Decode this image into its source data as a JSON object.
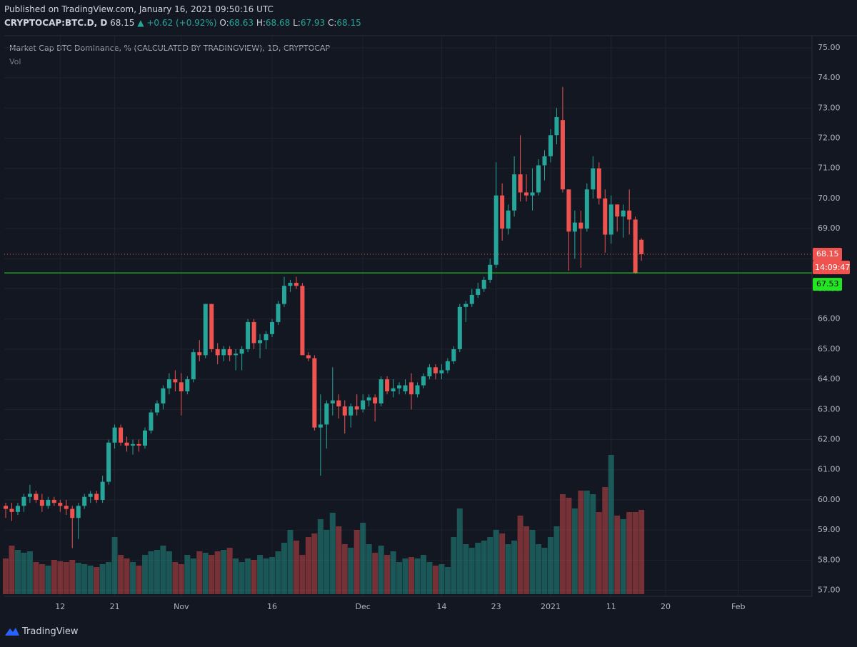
{
  "header": {
    "published": "Published on TradingView.com, January 16, 2021 09:50:16 UTC",
    "symbol": "CRYPTOCAP:BTC.D, D",
    "change": "+0.62 (+0.92%)",
    "ohlc_labels": [
      "O:",
      "H:",
      "L:",
      "C:"
    ]
  },
  "chart_data": {
    "type": "candlestick",
    "title": "Market Cap BTC Dominance, % (CALCULATED BY TRADINGVIEW), 1D, CRYPTOCAP",
    "volume_label": "Vol",
    "x": [
      "2020-10-03",
      "2020-10-04",
      "2020-10-05",
      "2020-10-06",
      "2020-10-07",
      "2020-10-08",
      "2020-10-09",
      "2020-10-10",
      "2020-10-11",
      "2020-10-12",
      "2020-10-13",
      "2020-10-14",
      "2020-10-15",
      "2020-10-16",
      "2020-10-17",
      "2020-10-18",
      "2020-10-19",
      "2020-10-20",
      "2020-10-21",
      "2020-10-22",
      "2020-10-23",
      "2020-10-24",
      "2020-10-25",
      "2020-10-26",
      "2020-10-27",
      "2020-10-28",
      "2020-10-29",
      "2020-10-30",
      "2020-10-31",
      "2020-11-01",
      "2020-11-02",
      "2020-11-03",
      "2020-11-04",
      "2020-11-05",
      "2020-11-06",
      "2020-11-07",
      "2020-11-08",
      "2020-11-09",
      "2020-11-10",
      "2020-11-11",
      "2020-11-12",
      "2020-11-13",
      "2020-11-14",
      "2020-11-15",
      "2020-11-16",
      "2020-11-17",
      "2020-11-18",
      "2020-11-19",
      "2020-11-20",
      "2020-11-21",
      "2020-11-22",
      "2020-11-23",
      "2020-11-24",
      "2020-11-25",
      "2020-11-26",
      "2020-11-27",
      "2020-11-28",
      "2020-11-29",
      "2020-11-30",
      "2020-12-01",
      "2020-12-02",
      "2020-12-03",
      "2020-12-04",
      "2020-12-05",
      "2020-12-06",
      "2020-12-07",
      "2020-12-08",
      "2020-12-09",
      "2020-12-10",
      "2020-12-11",
      "2020-12-12",
      "2020-12-13",
      "2020-12-14",
      "2020-12-15",
      "2020-12-16",
      "2020-12-17",
      "2020-12-18",
      "2020-12-19",
      "2020-12-20",
      "2020-12-21",
      "2020-12-22",
      "2020-12-23",
      "2020-12-24",
      "2020-12-25",
      "2020-12-26",
      "2020-12-27",
      "2020-12-28",
      "2020-12-29",
      "2020-12-30",
      "2020-12-31",
      "2021-01-01",
      "2021-01-02",
      "2021-01-03",
      "2021-01-04",
      "2021-01-05",
      "2021-01-06",
      "2021-01-07",
      "2021-01-08",
      "2021-01-09",
      "2021-01-10",
      "2021-01-11",
      "2021-01-12",
      "2021-01-13",
      "2021-01-14",
      "2021-01-15",
      "2021-01-16"
    ],
    "open": [
      59.8,
      59.7,
      59.6,
      59.8,
      60.1,
      60.2,
      60.0,
      59.8,
      60.0,
      59.9,
      59.8,
      59.7,
      59.4,
      59.8,
      60.1,
      60.2,
      60.0,
      60.6,
      61.9,
      62.4,
      61.9,
      61.8,
      61.85,
      61.8,
      62.3,
      62.9,
      63.2,
      63.7,
      64.0,
      63.9,
      63.6,
      64.0,
      64.9,
      64.8,
      66.5,
      65.0,
      64.8,
      65.0,
      64.8,
      64.85,
      65.0,
      65.9,
      65.2,
      65.3,
      65.5,
      65.9,
      66.5,
      67.1,
      67.2,
      67.1,
      64.8,
      64.7,
      62.4,
      62.5,
      63.2,
      63.3,
      63.1,
      62.8,
      63.1,
      63.0,
      63.3,
      63.4,
      63.2,
      64.0,
      63.6,
      63.7,
      63.6,
      63.9,
      63.5,
      63.8,
      64.1,
      64.4,
      64.2,
      64.3,
      64.6,
      65.0,
      66.4,
      66.5,
      66.8,
      67.0,
      67.3,
      67.8,
      70.1,
      69.0,
      69.6,
      70.8,
      70.2,
      70.1,
      70.2,
      71.1,
      71.4,
      72.1,
      72.6,
      70.3,
      68.9,
      69.2,
      69.0,
      70.3,
      71.0,
      70.0,
      68.8,
      69.8,
      69.4,
      69.6,
      69.3,
      68.63
    ],
    "high": [
      59.9,
      59.9,
      59.9,
      60.2,
      60.5,
      60.3,
      60.2,
      60.1,
      60.1,
      60.0,
      60.0,
      59.8,
      59.9,
      60.2,
      60.3,
      60.3,
      60.8,
      62.0,
      62.5,
      62.5,
      62.1,
      62.0,
      62.0,
      62.4,
      63.0,
      63.3,
      63.8,
      64.2,
      64.3,
      64.2,
      64.1,
      65.0,
      65.3,
      66.5,
      66.5,
      65.2,
      65.1,
      65.1,
      65.0,
      65.1,
      66.0,
      66.0,
      65.5,
      65.6,
      66.0,
      66.6,
      67.4,
      67.3,
      67.4,
      67.2,
      64.9,
      64.8,
      63.5,
      63.3,
      64.4,
      63.5,
      63.3,
      63.2,
      63.5,
      63.5,
      63.5,
      63.5,
      64.1,
      64.1,
      64.0,
      63.9,
      64.0,
      64.2,
      63.9,
      64.2,
      64.5,
      64.5,
      64.5,
      64.7,
      65.1,
      66.5,
      66.6,
      67.0,
      67.2,
      67.4,
      68.0,
      71.2,
      70.5,
      69.8,
      71.4,
      72.1,
      70.8,
      71.0,
      71.3,
      71.6,
      72.3,
      73.0,
      73.7,
      70.3,
      69.6,
      69.6,
      70.5,
      71.4,
      71.2,
      70.3,
      70.1,
      69.8,
      69.8,
      70.3,
      69.4,
      68.68
    ],
    "low": [
      59.4,
      59.3,
      59.5,
      59.6,
      59.9,
      59.9,
      59.6,
      59.7,
      59.8,
      59.6,
      59.5,
      58.4,
      58.7,
      59.7,
      59.9,
      59.9,
      59.9,
      60.5,
      61.7,
      61.8,
      61.6,
      61.5,
      61.6,
      61.7,
      62.2,
      62.8,
      63.0,
      63.5,
      63.6,
      62.8,
      63.5,
      63.9,
      64.6,
      64.7,
      64.9,
      64.5,
      64.6,
      64.6,
      64.3,
      64.3,
      64.9,
      65.0,
      64.7,
      65.0,
      65.4,
      65.8,
      66.4,
      66.9,
      67.0,
      64.8,
      64.6,
      62.3,
      60.8,
      61.7,
      62.8,
      62.7,
      62.2,
      62.4,
      62.8,
      62.9,
      63.1,
      62.6,
      63.1,
      63.5,
      63.4,
      63.5,
      63.5,
      63.0,
      63.4,
      63.7,
      64.0,
      64.0,
      64.0,
      64.2,
      64.5,
      64.9,
      65.9,
      66.4,
      66.7,
      66.9,
      67.2,
      67.7,
      68.6,
      68.8,
      69.4,
      69.9,
      69.9,
      69.6,
      70.1,
      70.6,
      71.2,
      71.8,
      70.2,
      67.6,
      68.0,
      67.7,
      68.9,
      70.0,
      69.8,
      68.2,
      68.5,
      68.9,
      68.7,
      68.8,
      67.5,
      67.93
    ],
    "close": [
      59.7,
      59.6,
      59.8,
      60.1,
      60.2,
      60.0,
      59.8,
      60.0,
      59.9,
      59.8,
      59.7,
      59.4,
      59.8,
      60.1,
      60.2,
      60.0,
      60.6,
      61.9,
      62.4,
      61.9,
      61.8,
      61.85,
      61.8,
      62.3,
      62.9,
      63.2,
      63.7,
      64.0,
      63.9,
      63.6,
      64.0,
      64.9,
      64.8,
      66.5,
      65.0,
      64.8,
      65.0,
      64.8,
      64.85,
      65.0,
      65.9,
      65.2,
      65.3,
      65.5,
      65.9,
      66.5,
      67.1,
      67.2,
      67.1,
      64.8,
      64.7,
      62.4,
      62.5,
      63.2,
      63.3,
      63.1,
      62.8,
      63.1,
      63.0,
      63.3,
      63.4,
      63.2,
      64.0,
      63.6,
      63.7,
      63.8,
      63.8,
      63.5,
      63.8,
      64.1,
      64.4,
      64.2,
      64.3,
      64.6,
      65.0,
      66.4,
      66.5,
      66.8,
      67.0,
      67.3,
      67.8,
      70.1,
      69.0,
      69.6,
      70.8,
      70.2,
      70.1,
      70.2,
      71.1,
      71.4,
      72.1,
      72.7,
      70.3,
      68.9,
      69.2,
      69.0,
      70.3,
      71.0,
      70.0,
      68.8,
      69.8,
      69.4,
      69.6,
      69.3,
      67.53,
      68.15
    ],
    "volume": [
      50,
      68,
      62,
      58,
      60,
      45,
      42,
      40,
      48,
      46,
      45,
      48,
      44,
      42,
      40,
      38,
      42,
      45,
      80,
      55,
      50,
      45,
      40,
      55,
      60,
      62,
      68,
      60,
      45,
      42,
      55,
      50,
      60,
      58,
      55,
      60,
      62,
      65,
      50,
      45,
      50,
      48,
      55,
      50,
      52,
      60,
      72,
      90,
      75,
      55,
      80,
      85,
      105,
      90,
      114,
      95,
      70,
      65,
      90,
      100,
      70,
      58,
      68,
      55,
      60,
      45,
      50,
      52,
      50,
      55,
      45,
      40,
      42,
      38,
      80,
      120,
      70,
      65,
      72,
      75,
      80,
      90,
      85,
      70,
      75,
      110,
      95,
      90,
      70,
      65,
      80,
      95,
      140,
      135,
      120,
      145,
      145,
      140,
      115,
      150,
      195,
      110,
      105,
      115,
      115,
      118
    ],
    "vlim": [
      0,
      200
    ],
    "ylim": [
      56.8,
      75.4
    ],
    "yticks": [
      {
        "value": 57,
        "label": "57.00"
      },
      {
        "value": 58,
        "label": "58.00"
      },
      {
        "value": 59,
        "label": "59.00"
      },
      {
        "value": 60,
        "label": "60.00"
      },
      {
        "value": 61,
        "label": "61.00"
      },
      {
        "value": 62,
        "label": "62.00"
      },
      {
        "value": 63,
        "label": "63.00"
      },
      {
        "value": 64,
        "label": "64.00"
      },
      {
        "value": 65,
        "label": "65.00"
      },
      {
        "value": 66,
        "label": "66.00"
      },
      {
        "value": 67,
        "label": "67.00"
      },
      {
        "value": 68,
        "label": "68.00"
      },
      {
        "value": 69,
        "label": "69.00"
      },
      {
        "value": 70,
        "label": "70.00"
      },
      {
        "value": 71,
        "label": "71.00"
      },
      {
        "value": 72,
        "label": "72.00"
      },
      {
        "value": 73,
        "label": "73.00"
      },
      {
        "value": 74,
        "label": "74.00"
      },
      {
        "value": 75,
        "label": "75.00"
      }
    ],
    "xlim": [
      "2020-10-03",
      "2021-02-13"
    ],
    "xticks": [
      {
        "value": "2020-10-12",
        "label": "12"
      },
      {
        "value": "2020-10-21",
        "label": "21"
      },
      {
        "value": "2020-11-01",
        "label": "Nov"
      },
      {
        "value": "2020-11-16",
        "label": "16"
      },
      {
        "value": "2020-12-01",
        "label": "Dec"
      },
      {
        "value": "2020-12-14",
        "label": "14"
      },
      {
        "value": "2020-12-23",
        "label": "23"
      },
      {
        "value": "2021-01-01",
        "label": "2021"
      },
      {
        "value": "2021-01-11",
        "label": "11"
      },
      {
        "value": "2021-01-20",
        "label": "20"
      },
      {
        "value": "2021-02-01",
        "label": "Feb"
      }
    ],
    "grid": true,
    "up_color": "#26a69a",
    "down_color": "#ef5350",
    "hline": {
      "value": 67.53,
      "color": "#22e622"
    },
    "countdown": "14:09:47"
  },
  "footer": {
    "brand": "TradingView"
  }
}
